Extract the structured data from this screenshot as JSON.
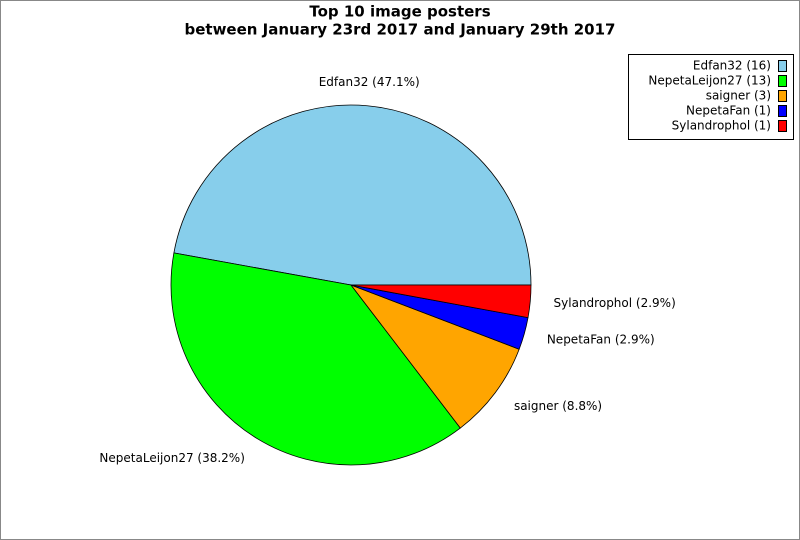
{
  "chart_data": {
    "type": "pie",
    "title": "Top 10 image posters",
    "subtitle": "between January 23rd 2017 and January 29th 2017",
    "categories": [
      "Edfan32 (16)",
      "NepetaLeijon27 (13)",
      "saigner (3)",
      "NepetaFan (1)",
      "Sylandrophol (1)"
    ],
    "values": [
      47.1,
      38.2,
      8.8,
      2.9,
      2.9
    ],
    "value_labels": [
      "Edfan32 (47.1%)",
      "NepetaLeijon27 (38.2%)",
      "saigner (8.8%)",
      "NepetaFan (2.9%)",
      "Sylandrophol (2.9%)"
    ],
    "colors": [
      "#87ceeb",
      "#00ff00",
      "#ffa500",
      "#0000ff",
      "#ff0000"
    ],
    "legend": "upper right"
  }
}
